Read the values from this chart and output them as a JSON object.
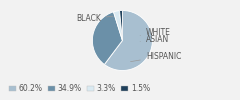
{
  "labels": [
    "BLACK",
    "HISPANIC",
    "WHITE",
    "ASIAN"
  ],
  "values": [
    60.2,
    34.9,
    3.3,
    1.5
  ],
  "colors": [
    "#a8bfd0",
    "#6b90a8",
    "#daeaf2",
    "#1e3f5a"
  ],
  "legend_labels": [
    "60.2%",
    "34.9%",
    "3.3%",
    "1.5%"
  ],
  "legend_colors": [
    "#a8bfd0",
    "#6b90a8",
    "#daeaf2",
    "#1e3f5a"
  ],
  "startangle": 90,
  "text_color": "#555555",
  "font_size": 5.5,
  "legend_font_size": 5.5,
  "bg_color": "#f2f2f2"
}
